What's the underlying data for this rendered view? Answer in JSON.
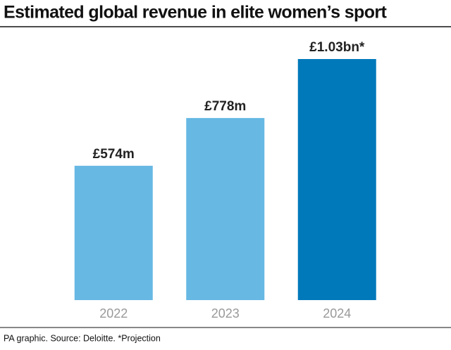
{
  "chart_data": {
    "type": "bar",
    "title": "Estimated global revenue in elite women’s sport",
    "categories": [
      "2022",
      "2023",
      "2024"
    ],
    "values": [
      574,
      778,
      1030
    ],
    "value_labels": [
      "£574m",
      "£778m",
      "£1.03bn*"
    ],
    "colors": [
      "#67b8e3",
      "#67b8e3",
      "#0079bb"
    ],
    "footnote": "PA graphic. Source: Deloitte. *Projection"
  }
}
